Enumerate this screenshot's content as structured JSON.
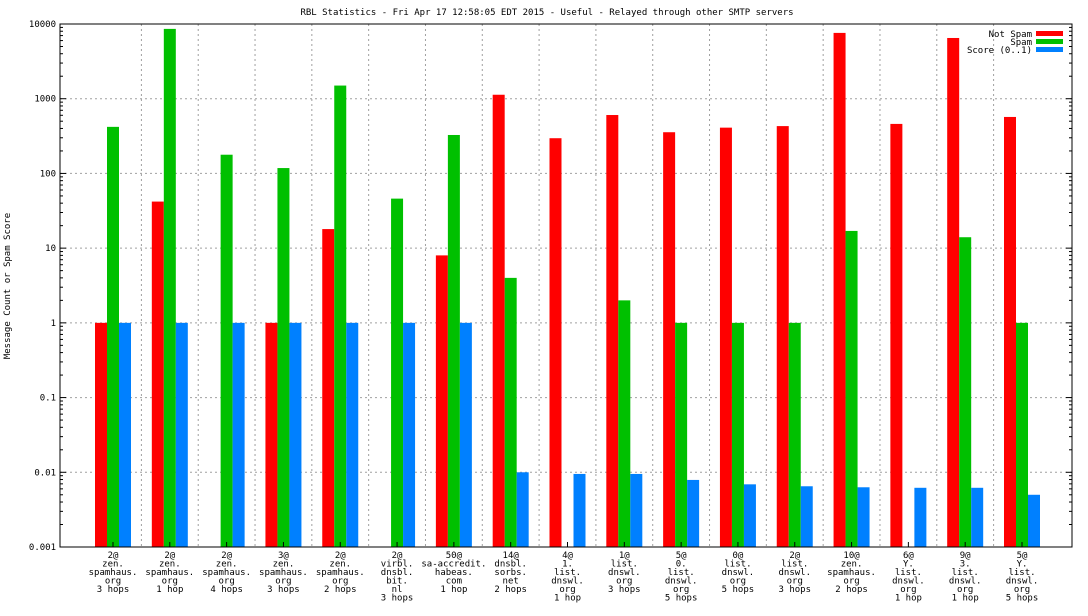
{
  "chart_data": {
    "type": "bar",
    "title": "RBL Statistics - Fri Apr 17 12:58:05 EDT 2015 - Useful - Relayed through other SMTP servers",
    "ylabel": "Message Count or Spam Score",
    "xlabel": "",
    "yscale": "log",
    "ylim": [
      0.001,
      10000
    ],
    "yticks": [
      "0.001",
      "0.01",
      "0.1",
      "1",
      "10",
      "100",
      "1000",
      "10000"
    ],
    "legend_position": "top-right",
    "categories": [
      [
        "2@",
        "zen.",
        "spamhaus.",
        "org",
        "3 hops"
      ],
      [
        "2@",
        "zen.",
        "spamhaus.",
        "org",
        "1 hop"
      ],
      [
        "2@",
        "zen.",
        "spamhaus.",
        "org",
        "4 hops"
      ],
      [
        "3@",
        "zen.",
        "spamhaus.",
        "org",
        "3 hops"
      ],
      [
        "2@",
        "zen.",
        "spamhaus.",
        "org",
        "2 hops"
      ],
      [
        "2@",
        "virbl.",
        "dnsbl.",
        "bit.",
        "nl",
        "3 hops"
      ],
      [
        "50@",
        "sa-accredit.",
        "habeas.",
        "com",
        "1 hop"
      ],
      [
        "14@",
        "dnsbl.",
        "sorbs.",
        "net",
        "2 hops"
      ],
      [
        "4@",
        "1.",
        "list.",
        "dnswl.",
        "org",
        "1 hop"
      ],
      [
        "1@",
        "list.",
        "dnswl.",
        "org",
        "3 hops"
      ],
      [
        "5@",
        "0.",
        "list.",
        "dnswl.",
        "org",
        "5 hops"
      ],
      [
        "0@",
        "list.",
        "dnswl.",
        "org",
        "5 hops"
      ],
      [
        "2@",
        "list.",
        "dnswl.",
        "org",
        "3 hops"
      ],
      [
        "10@",
        "zen.",
        "spamhaus.",
        "org",
        "2 hops"
      ],
      [
        "6@",
        "Y.",
        "list.",
        "dnswl.",
        "org",
        "1 hop"
      ],
      [
        "9@",
        "3.",
        "list.",
        "dnswl.",
        "org",
        "1 hop"
      ],
      [
        "5@",
        "Y.",
        "list.",
        "dnswl.",
        "org",
        "5 hops"
      ]
    ],
    "series": [
      {
        "name": "Not Spam",
        "color": "#ff0000",
        "values": [
          1,
          42,
          0,
          1,
          18,
          0,
          8,
          1130,
          296,
          605,
          356,
          410,
          430,
          7600,
          460,
          6500,
          570
        ]
      },
      {
        "name": "Spam",
        "color": "#00c000",
        "values": [
          420,
          8600,
          178,
          118,
          1500,
          46,
          327,
          4,
          0,
          2,
          1,
          1,
          1,
          17,
          0,
          14,
          1
        ]
      },
      {
        "name": "Score (0..1)",
        "color": "#0080ff",
        "values": [
          1,
          1,
          1,
          1,
          1,
          1,
          1,
          0.01,
          0.0095,
          0.0095,
          0.0079,
          0.0069,
          0.0065,
          0.0063,
          0.0062,
          0.0062,
          0.005
        ]
      }
    ]
  }
}
